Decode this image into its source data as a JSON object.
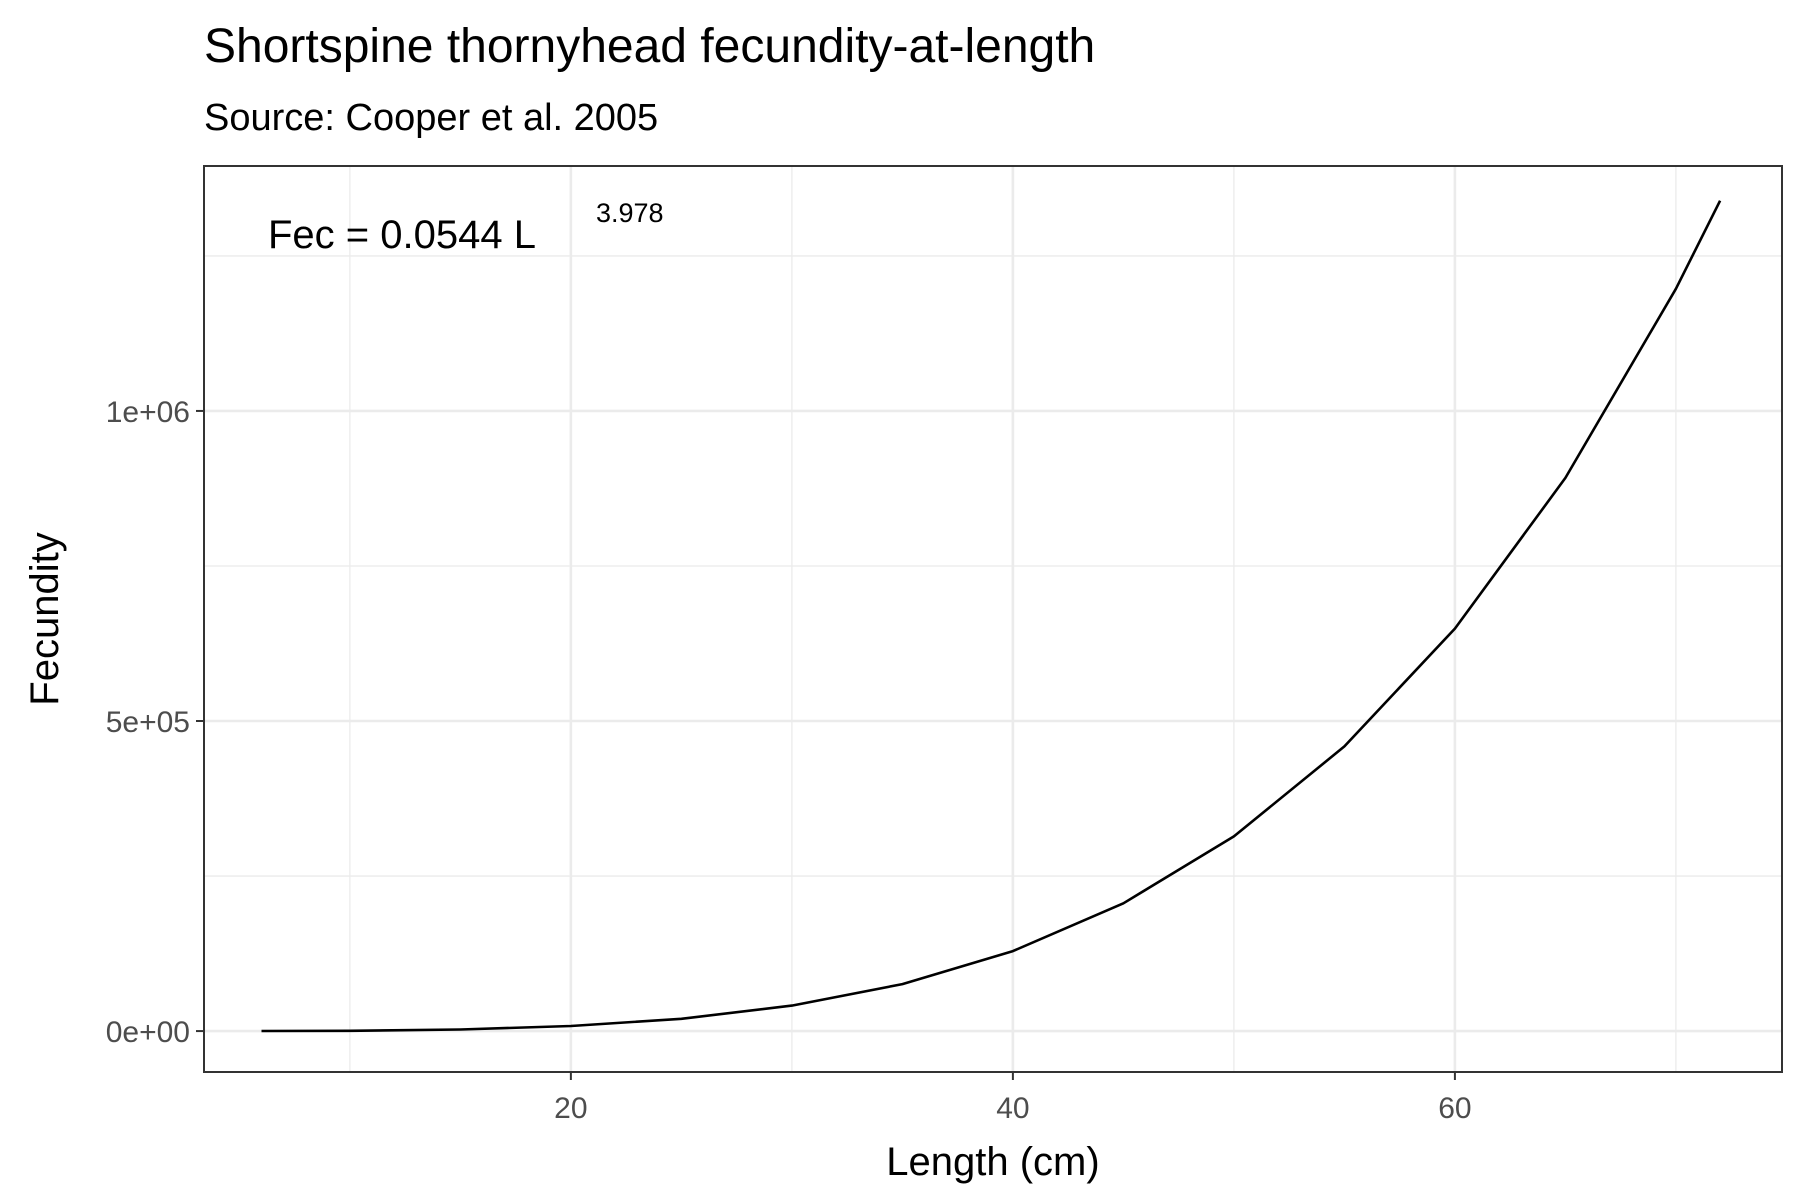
{
  "chart_data": {
    "type": "line",
    "title": "Shortspine thornyhead fecundity-at-length",
    "subtitle": "Source: Cooper et al. 2005",
    "xlabel": "Length (cm)",
    "ylabel": "Fecundity",
    "xlim": [
      3.4,
      74.8
    ],
    "ylim": [
      -66000,
      1395000
    ],
    "x_ticks": [
      20,
      40,
      60
    ],
    "x_tick_labels": [
      "20",
      "40",
      "60"
    ],
    "y_ticks": [
      0,
      500000,
      1000000
    ],
    "y_tick_labels": [
      "0e+00",
      "5e+05",
      "1e+06"
    ],
    "grid": true,
    "annotation": {
      "main": "Fec = 0.0544 L",
      "exponent": "3.978"
    },
    "series": [
      {
        "color": "#000000",
        "x": [
          6,
          10,
          15,
          20,
          25,
          30,
          35,
          40,
          45,
          50,
          55,
          60,
          65,
          70,
          72
        ],
        "y": [
          66,
          515,
          2590,
          8130,
          19800,
          41000,
          75800,
          129000,
          206000,
          314000,
          459000,
          649000,
          892000,
          1197000,
          1339000
        ]
      }
    ]
  }
}
